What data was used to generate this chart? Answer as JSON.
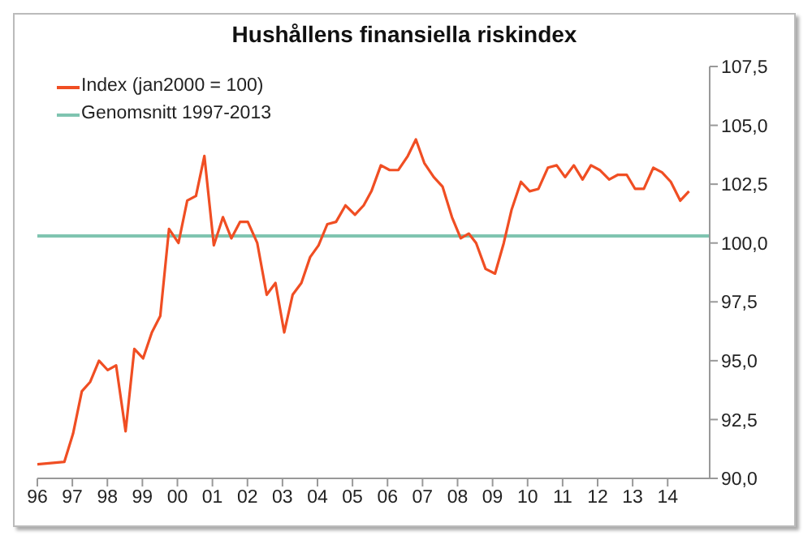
{
  "chart_data": {
    "type": "line",
    "title": "Hushållens finansiella riskindex",
    "x": [
      1996.0,
      1996.77,
      1997.02,
      1997.27,
      1997.51,
      1997.76,
      1998.01,
      1998.25,
      1998.52,
      1998.77,
      1999.02,
      1999.27,
      1999.51,
      1999.76,
      2000.03,
      2000.28,
      2000.53,
      2000.77,
      2001.04,
      2001.3,
      2001.54,
      2001.79,
      2002.01,
      2002.28,
      2002.55,
      2002.8,
      2003.05,
      2003.29,
      2003.54,
      2003.79,
      2004.03,
      2004.28,
      2004.53,
      2004.8,
      2005.07,
      2005.32,
      2005.54,
      2005.81,
      2006.06,
      2006.31,
      2006.58,
      2006.81,
      2007.05,
      2007.32,
      2007.57,
      2007.84,
      2008.09,
      2008.32,
      2008.53,
      2008.8,
      2009.07,
      2009.32,
      2009.54,
      2009.81,
      2010.06,
      2010.31,
      2010.58,
      2010.83,
      2011.07,
      2011.32,
      2011.57,
      2011.81,
      2012.06,
      2012.33,
      2012.58,
      2012.83,
      2013.07,
      2013.32,
      2013.59,
      2013.84,
      2014.09,
      2014.36,
      2014.61
    ],
    "series": [
      {
        "name": "Index (jan2000 = 100)",
        "color": "#f04e23",
        "values": [
          90.6,
          90.7,
          91.9,
          93.7,
          94.1,
          95.0,
          94.6,
          94.8,
          92.0,
          95.5,
          95.1,
          96.2,
          96.9,
          100.6,
          100.0,
          101.8,
          102.0,
          103.7,
          99.9,
          101.1,
          100.2,
          100.9,
          100.9,
          100.0,
          97.8,
          98.3,
          96.2,
          97.8,
          98.3,
          99.4,
          99.9,
          100.8,
          100.9,
          101.6,
          101.2,
          101.6,
          102.2,
          103.3,
          103.1,
          103.1,
          103.7,
          104.4,
          103.4,
          102.8,
          102.4,
          101.1,
          100.2,
          100.4,
          100.0,
          98.9,
          98.7,
          100.0,
          101.4,
          102.6,
          102.2,
          102.3,
          103.2,
          103.3,
          102.8,
          103.3,
          102.7,
          103.3,
          103.1,
          102.7,
          102.9,
          102.9,
          102.3,
          102.3,
          103.2,
          103.0,
          102.6,
          101.8,
          102.2
        ]
      }
    ],
    "ref_lines": [
      {
        "axis": "y",
        "value": 100.3,
        "label": "Genomsnitt 1997-2013",
        "color": "#7fc4b0"
      }
    ],
    "xlim": [
      1996,
      2015.2
    ],
    "xticks": [
      {
        "value": 1996,
        "label": "96"
      },
      {
        "value": 1997,
        "label": "97"
      },
      {
        "value": 1998,
        "label": "98"
      },
      {
        "value": 1999,
        "label": "99"
      },
      {
        "value": 2000,
        "label": "00"
      },
      {
        "value": 2001,
        "label": "01"
      },
      {
        "value": 2002,
        "label": "02"
      },
      {
        "value": 2003,
        "label": "03"
      },
      {
        "value": 2004,
        "label": "04"
      },
      {
        "value": 2005,
        "label": "05"
      },
      {
        "value": 2006,
        "label": "06"
      },
      {
        "value": 2007,
        "label": "07"
      },
      {
        "value": 2008,
        "label": "08"
      },
      {
        "value": 2009,
        "label": "09"
      },
      {
        "value": 2010,
        "label": "10"
      },
      {
        "value": 2011,
        "label": "11"
      },
      {
        "value": 2012,
        "label": "12"
      },
      {
        "value": 2013,
        "label": "13"
      },
      {
        "value": 2014,
        "label": "14"
      }
    ],
    "ylim": [
      90,
      107.5
    ],
    "yticks": [
      {
        "value": 90,
        "label": "90,0"
      },
      {
        "value": 92.5,
        "label": "92,5"
      },
      {
        "value": 95,
        "label": "95,0"
      },
      {
        "value": 97.5,
        "label": "97,5"
      },
      {
        "value": 100,
        "label": "100,0"
      },
      {
        "value": 102.5,
        "label": "102,5"
      },
      {
        "value": 105,
        "label": "105,0"
      },
      {
        "value": 107.5,
        "label": "107,5"
      }
    ],
    "grid": false,
    "legend": "top left",
    "marker": "none",
    "line_style": "solid"
  }
}
